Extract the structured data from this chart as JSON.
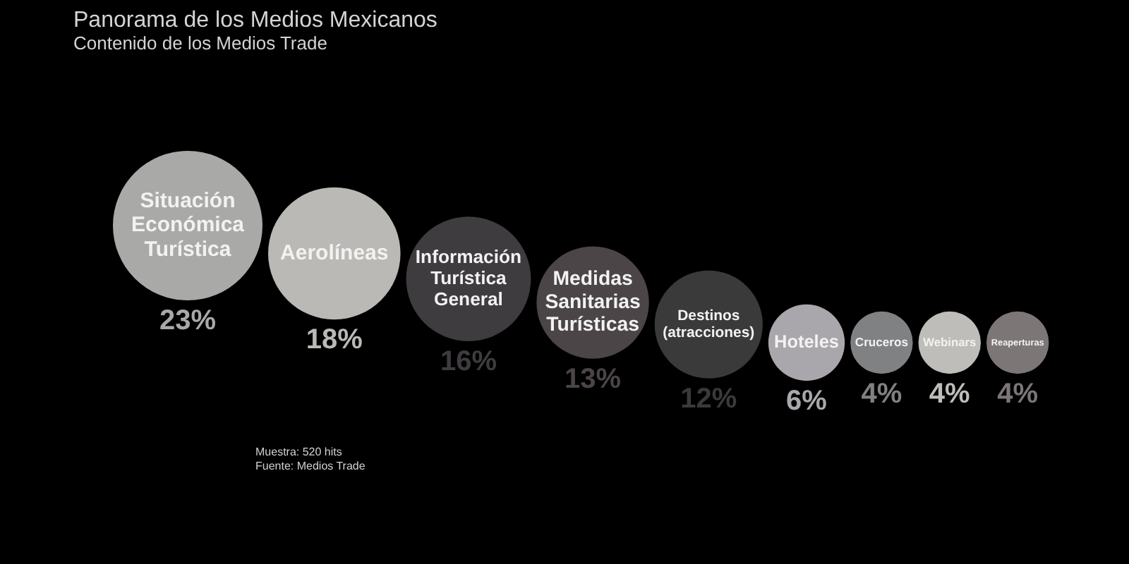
{
  "chart_data": {
    "type": "other",
    "title": "Panorama de los Medios Mexicanos",
    "subtitle": "Contenido de los Medios Trade",
    "categories": [
      "Situación Económica Turística",
      "Aerolíneas",
      "Información Turística General",
      "Medidas Sanitarias Turísticas",
      "Destinos (atracciones)",
      "Hoteles",
      "Cruceros",
      "Webinars",
      "Reaperturas"
    ],
    "values": [
      23,
      18,
      16,
      13,
      12,
      6,
      4,
      4,
      4
    ],
    "colors": [
      "#a9aaa7",
      "#bab9b5",
      "#3f3c3f",
      "#4b4547",
      "#3b3a3b",
      "#aaa7ac",
      "#808183",
      "#bebdb9",
      "#7c7677"
    ],
    "value_labels": [
      "23%",
      "18%",
      "16%",
      "13%",
      "12%",
      "6%",
      "4%",
      "4%",
      "4%"
    ],
    "annotations": [
      "Muestra: 520 hits",
      "Fuente: Medios Trade"
    ]
  }
}
